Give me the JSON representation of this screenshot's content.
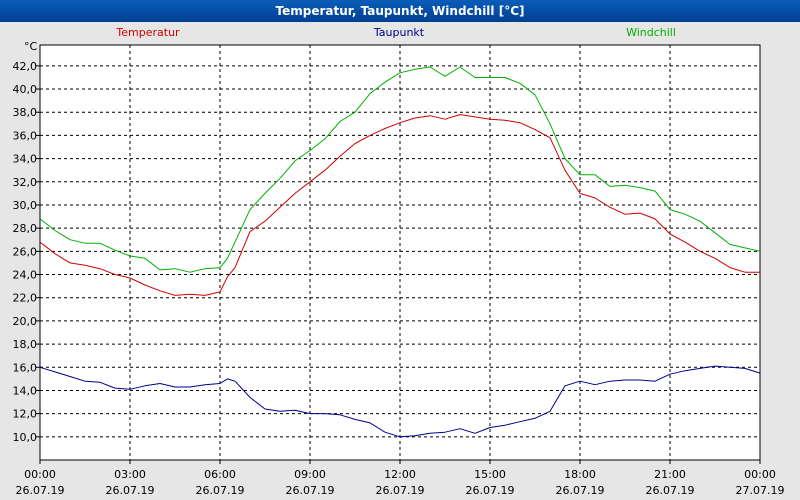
{
  "window": {
    "title": "Temperatur, Taupunkt, Windchill [°C]"
  },
  "chart_data": {
    "type": "line",
    "title": "Temperatur, Taupunkt, Windchill [°C]",
    "ylabel": "°C",
    "xlabel": "",
    "ylim": [
      8.0,
      43.8
    ],
    "xlim": [
      0,
      24
    ],
    "grid": true,
    "yticks": [
      "10,0",
      "12,0",
      "14,0",
      "16,0",
      "18,0",
      "20,0",
      "22,0",
      "24,0",
      "26,0",
      "28,0",
      "30,0",
      "32,0",
      "34,0",
      "36,0",
      "38,0",
      "40,0",
      "42,0"
    ],
    "xticks": [
      {
        "time": "00:00",
        "date": "26.07.19"
      },
      {
        "time": "03:00",
        "date": "26.07.19"
      },
      {
        "time": "06:00",
        "date": "26.07.19"
      },
      {
        "time": "09:00",
        "date": "26.07.19"
      },
      {
        "time": "12:00",
        "date": "26.07.19"
      },
      {
        "time": "15:00",
        "date": "26.07.19"
      },
      {
        "time": "18:00",
        "date": "26.07.19"
      },
      {
        "time": "21:00",
        "date": "26.07.19"
      },
      {
        "time": "00:00",
        "date": "27.07.19"
      }
    ],
    "series": [
      {
        "name": "Temperatur",
        "color": "#d00000",
        "x": [
          0,
          0.5,
          1,
          1.5,
          2,
          2.5,
          3,
          3.5,
          4,
          4.5,
          5,
          5.5,
          6,
          6.25,
          6.5,
          7,
          7.5,
          8,
          8.5,
          9,
          9.5,
          10,
          10.5,
          11,
          11.5,
          12,
          12.5,
          13,
          13.5,
          14,
          14.5,
          15,
          15.5,
          16,
          16.5,
          17,
          17.5,
          18,
          18.5,
          19,
          19.5,
          20,
          20.5,
          21,
          21.5,
          22,
          22.5,
          23,
          23.5,
          24
        ],
        "values": [
          26.8,
          25.8,
          25.0,
          24.8,
          24.5,
          24.0,
          23.7,
          23.1,
          22.6,
          22.2,
          22.3,
          22.2,
          22.5,
          23.8,
          24.6,
          27.7,
          28.6,
          29.8,
          31.0,
          32.0,
          33.0,
          34.2,
          35.3,
          36.0,
          36.6,
          37.1,
          37.5,
          37.7,
          37.4,
          37.8,
          37.6,
          37.4,
          37.3,
          37.1,
          36.5,
          35.8,
          33.0,
          31.0,
          30.6,
          29.8,
          29.2,
          29.3,
          28.8,
          27.5,
          26.8,
          26.0,
          25.4,
          24.6,
          24.2,
          24.2
        ]
      },
      {
        "name": "Taupunkt",
        "color": "#00008c",
        "x": [
          0,
          0.5,
          1,
          1.5,
          2,
          2.5,
          3,
          3.5,
          4,
          4.5,
          5,
          5.5,
          6,
          6.25,
          6.5,
          7,
          7.5,
          8,
          8.5,
          9,
          9.5,
          10,
          10.5,
          11,
          11.5,
          12,
          12.5,
          13,
          13.5,
          14,
          14.5,
          15,
          15.5,
          16,
          16.5,
          17,
          17.5,
          18,
          18.5,
          19,
          19.5,
          20,
          20.5,
          21,
          21.5,
          22,
          22.5,
          23,
          23.5,
          24
        ],
        "values": [
          16.0,
          15.6,
          15.2,
          14.8,
          14.7,
          14.2,
          14.1,
          14.4,
          14.6,
          14.3,
          14.3,
          14.5,
          14.6,
          15.0,
          14.8,
          13.4,
          12.4,
          12.2,
          12.3,
          12.0,
          12.0,
          11.9,
          11.5,
          11.2,
          10.4,
          10.0,
          10.1,
          10.3,
          10.4,
          10.7,
          10.3,
          10.8,
          11.0,
          11.3,
          11.6,
          12.2,
          14.4,
          14.8,
          14.5,
          14.8,
          14.9,
          14.9,
          14.8,
          15.4,
          15.7,
          15.9,
          16.1,
          16.0,
          15.9,
          15.5
        ]
      },
      {
        "name": "Windchill",
        "color": "#00b000",
        "x": [
          0,
          0.5,
          1,
          1.5,
          2,
          2.5,
          3,
          3.5,
          4,
          4.5,
          5,
          5.5,
          6,
          6.25,
          6.5,
          7,
          7.5,
          8,
          8.5,
          9,
          9.5,
          10,
          10.5,
          11,
          11.5,
          12,
          12.5,
          13,
          13.5,
          14,
          14.5,
          15,
          15.5,
          16,
          16.5,
          17,
          17.5,
          18,
          18.5,
          19,
          19.5,
          20,
          20.5,
          21,
          21.5,
          22,
          22.5,
          23,
          23.5,
          24
        ],
        "values": [
          28.8,
          27.8,
          27.0,
          26.7,
          26.7,
          26.1,
          25.6,
          25.4,
          24.4,
          24.5,
          24.2,
          24.5,
          24.6,
          25.4,
          26.8,
          29.6,
          31.0,
          32.3,
          33.8,
          34.7,
          35.7,
          37.2,
          38.0,
          39.6,
          40.6,
          41.4,
          41.7,
          41.9,
          41.1,
          41.9,
          41.0,
          41.0,
          41.0,
          40.5,
          39.5,
          37.0,
          34.0,
          32.6,
          32.6,
          31.6,
          31.7,
          31.5,
          31.2,
          29.6,
          29.2,
          28.6,
          27.6,
          26.6,
          26.3,
          26.0
        ]
      }
    ]
  }
}
